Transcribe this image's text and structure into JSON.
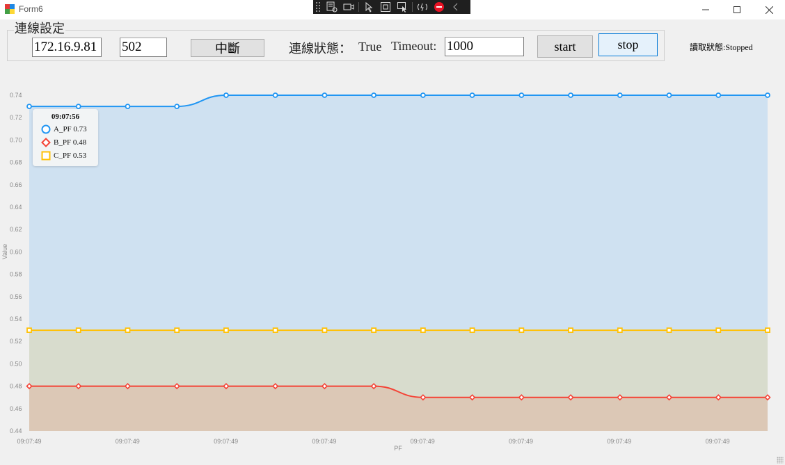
{
  "window": {
    "title": "Form6"
  },
  "connection": {
    "group_label": "連線設定",
    "ip": "172.16.9.81",
    "port": "502",
    "disconnect_label": "中斷",
    "status_label": "連線狀態：",
    "status_value": "True",
    "timeout_label": "Timeout:",
    "timeout_value": "1000",
    "start_label": "start",
    "stop_label": "stop"
  },
  "read_status": "讀取狀態:Stopped",
  "tooltip": {
    "time": "09:07:56",
    "rows": [
      {
        "text": "A_PF 0.73"
      },
      {
        "text": "B_PF 0.48"
      },
      {
        "text": "C_PF 0.53"
      }
    ]
  },
  "chart_data": {
    "type": "area",
    "xlabel": "PF",
    "ylabel": "Value",
    "ylim": [
      0.44,
      0.74
    ],
    "yticks": [
      0.44,
      0.46,
      0.48,
      0.5,
      0.52,
      0.54,
      0.56,
      0.58,
      0.6,
      0.62,
      0.64,
      0.66,
      0.68,
      0.7,
      0.72,
      0.74
    ],
    "xtick_labels": [
      "09:07:49",
      "09:07:49",
      "09:07:49",
      "09:07:49",
      "09:07:49",
      "09:07:49",
      "09:07:49",
      "09:07:49"
    ],
    "x": [
      0,
      1,
      2,
      3,
      4,
      5,
      6,
      7,
      8,
      9,
      10,
      11,
      12,
      13,
      14,
      15
    ],
    "grid": false,
    "series": [
      {
        "name": "A_PF",
        "color": "#2196f3",
        "fill": "#cfe1f1",
        "marker": "circle",
        "values": [
          0.73,
          0.73,
          0.73,
          0.73,
          0.74,
          0.74,
          0.74,
          0.74,
          0.74,
          0.74,
          0.74,
          0.74,
          0.74,
          0.74,
          0.74,
          0.74
        ]
      },
      {
        "name": "C_PF",
        "color": "#ffc107",
        "fill": "#d8dccd",
        "marker": "square",
        "values": [
          0.53,
          0.53,
          0.53,
          0.53,
          0.53,
          0.53,
          0.53,
          0.53,
          0.53,
          0.53,
          0.53,
          0.53,
          0.53,
          0.53,
          0.53,
          0.53
        ]
      },
      {
        "name": "B_PF",
        "color": "#f44336",
        "fill": "#dcc8b6",
        "marker": "diamond",
        "values": [
          0.48,
          0.48,
          0.48,
          0.48,
          0.48,
          0.48,
          0.48,
          0.48,
          0.47,
          0.47,
          0.47,
          0.47,
          0.47,
          0.47,
          0.47,
          0.47
        ]
      }
    ]
  }
}
